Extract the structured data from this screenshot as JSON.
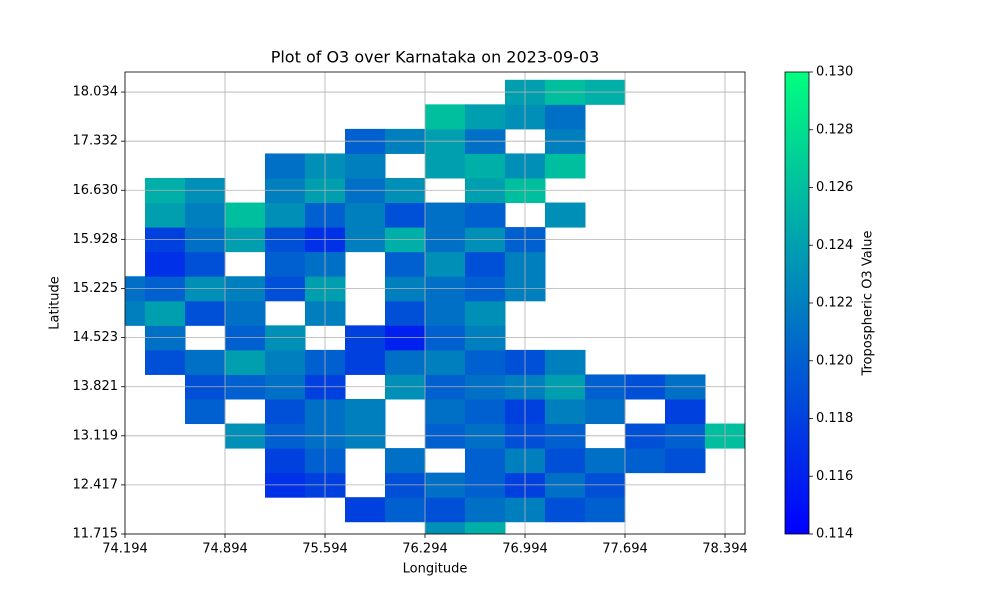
{
  "chart_data": {
    "type": "contour",
    "title": "Plot of O3 over Karnataka on 2023-09-03",
    "x_label": "Longitude",
    "y_label": "Latitude",
    "colorbar_label": "Tropospheric O3 Value",
    "colormap": "winter",
    "grid": true,
    "x": [
      74.194,
      74.474,
      74.754,
      75.034,
      75.314,
      75.594,
      75.874,
      76.154,
      76.434,
      76.714,
      76.994,
      77.274,
      77.554,
      77.834,
      78.114,
      78.394
    ],
    "y": [
      11.715,
      12.066,
      12.417,
      12.768,
      13.119,
      13.47,
      13.821,
      14.172,
      14.523,
      14.874,
      15.225,
      15.577,
      15.928,
      16.279,
      16.63,
      16.981,
      17.332,
      17.683,
      18.034
    ],
    "z": [
      [
        null,
        null,
        null,
        null,
        null,
        null,
        null,
        null,
        0.123,
        0.125,
        null,
        null,
        null,
        null,
        null,
        null
      ],
      [
        null,
        null,
        null,
        null,
        null,
        null,
        0.118,
        0.12,
        0.119,
        0.121,
        0.122,
        0.119,
        0.12,
        null,
        null,
        null
      ],
      [
        null,
        null,
        null,
        null,
        0.117,
        0.118,
        null,
        0.119,
        0.121,
        0.12,
        0.118,
        0.121,
        0.119,
        null,
        null,
        null
      ],
      [
        null,
        null,
        null,
        null,
        0.118,
        0.12,
        null,
        0.121,
        null,
        0.12,
        0.122,
        0.119,
        0.121,
        0.12,
        0.119,
        null
      ],
      [
        null,
        null,
        null,
        0.123,
        0.12,
        0.121,
        0.122,
        null,
        0.12,
        0.121,
        0.119,
        0.12,
        null,
        0.119,
        0.12,
        0.126
      ],
      [
        null,
        null,
        0.12,
        null,
        0.119,
        0.121,
        0.122,
        null,
        0.121,
        0.12,
        0.118,
        0.122,
        0.121,
        null,
        0.118,
        null
      ],
      [
        null,
        null,
        0.119,
        0.12,
        0.121,
        0.118,
        null,
        0.123,
        0.12,
        0.121,
        0.122,
        0.124,
        0.12,
        0.119,
        0.121,
        null
      ],
      [
        null,
        0.119,
        0.121,
        0.124,
        0.122,
        0.12,
        0.118,
        0.121,
        0.122,
        0.12,
        0.119,
        0.122,
        null,
        null,
        null,
        null
      ],
      [
        null,
        0.121,
        null,
        0.12,
        0.123,
        null,
        0.118,
        0.116,
        0.12,
        0.122,
        null,
        null,
        null,
        null,
        null,
        null
      ],
      [
        0.122,
        0.124,
        0.119,
        0.121,
        null,
        0.122,
        null,
        0.119,
        0.121,
        0.123,
        null,
        null,
        null,
        null,
        null,
        null
      ],
      [
        0.121,
        0.12,
        0.123,
        0.122,
        0.119,
        0.124,
        null,
        0.122,
        0.121,
        0.12,
        0.122,
        null,
        null,
        null,
        null,
        null
      ],
      [
        null,
        0.117,
        0.119,
        null,
        0.12,
        0.121,
        null,
        0.12,
        0.123,
        0.119,
        0.122,
        null,
        null,
        null,
        null,
        null
      ],
      [
        null,
        0.118,
        0.121,
        0.124,
        0.119,
        0.117,
        0.122,
        0.125,
        0.121,
        0.123,
        0.12,
        null,
        null,
        null,
        null,
        null
      ],
      [
        null,
        0.124,
        0.122,
        0.126,
        0.123,
        0.12,
        0.122,
        0.119,
        0.121,
        0.12,
        null,
        0.123,
        null,
        null,
        null,
        null
      ],
      [
        null,
        0.125,
        0.123,
        null,
        0.122,
        0.124,
        0.121,
        0.123,
        null,
        0.124,
        0.126,
        null,
        null,
        null,
        null,
        null
      ],
      [
        null,
        null,
        null,
        null,
        0.121,
        0.123,
        0.122,
        null,
        0.124,
        0.125,
        0.123,
        0.126,
        null,
        null,
        null,
        null
      ],
      [
        null,
        null,
        null,
        null,
        null,
        null,
        0.12,
        0.122,
        0.124,
        0.121,
        null,
        0.122,
        null,
        null,
        null,
        null
      ],
      [
        null,
        null,
        null,
        null,
        null,
        null,
        null,
        null,
        0.126,
        0.124,
        0.123,
        0.121,
        null,
        null,
        null,
        null
      ],
      [
        null,
        null,
        null,
        null,
        null,
        null,
        null,
        null,
        null,
        null,
        0.124,
        0.126,
        0.125,
        null,
        null,
        null
      ]
    ],
    "xlim": [
      74.194,
      78.534
    ],
    "ylim": [
      11.715,
      18.321
    ],
    "xticks": [
      74.194,
      74.894,
      75.594,
      76.294,
      76.994,
      77.694,
      78.394
    ],
    "yticks": [
      11.715,
      12.417,
      13.119,
      13.821,
      14.523,
      15.225,
      15.928,
      {
        "value": 16.63,
        "label": "16.630"
      },
      17.332,
      18.034
    ],
    "zlim": [
      0.114,
      0.13
    ],
    "zticks": [
      0.114,
      0.116,
      0.118,
      {
        "value": 0.12,
        "label": "0.120"
      },
      0.122,
      0.124,
      0.126,
      0.128,
      {
        "value": 0.13,
        "label": "0.130"
      }
    ]
  }
}
